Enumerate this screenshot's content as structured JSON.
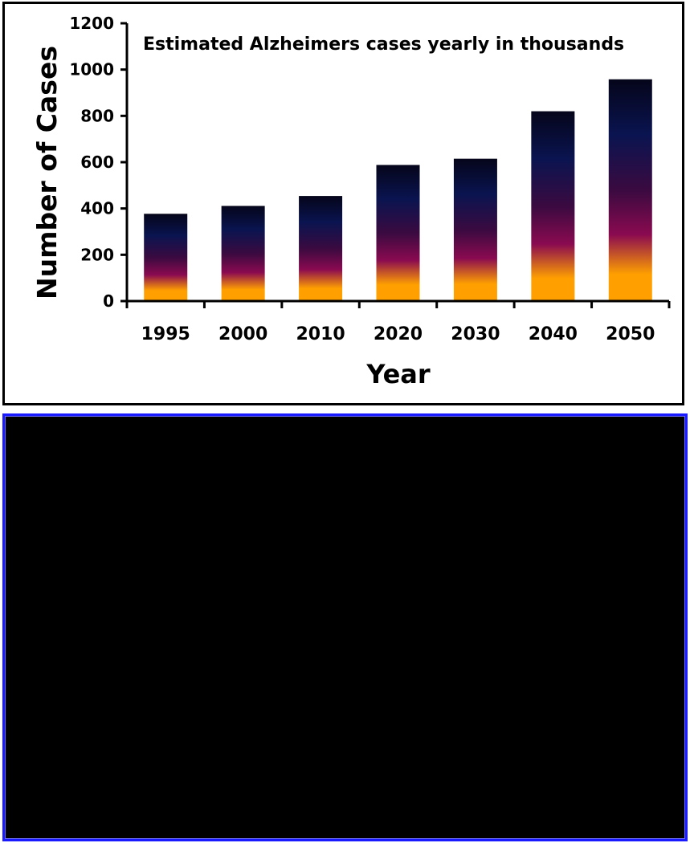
{
  "chart_data": {
    "type": "bar",
    "title": "Estimated Alzheimers cases yearly in thousands",
    "xlabel": "Year",
    "ylabel": "Number of Cases",
    "categories": [
      "1995",
      "2000",
      "2010",
      "2020",
      "2030",
      "2040",
      "2050"
    ],
    "values": [
      377,
      411,
      454,
      588,
      615,
      820,
      958
    ],
    "ylim": [
      0,
      1200
    ],
    "yticks": [
      "0",
      "200",
      "400",
      "600",
      "800",
      "1000",
      "1200"
    ],
    "grid": false,
    "legend": "none",
    "colors": {
      "bar_top": "#05051a",
      "bar_upper": "#0a1450",
      "bar_mid": "#3a0a40",
      "bar_lower": "#8a0a50",
      "bar_bottom": "#ffa000"
    }
  }
}
